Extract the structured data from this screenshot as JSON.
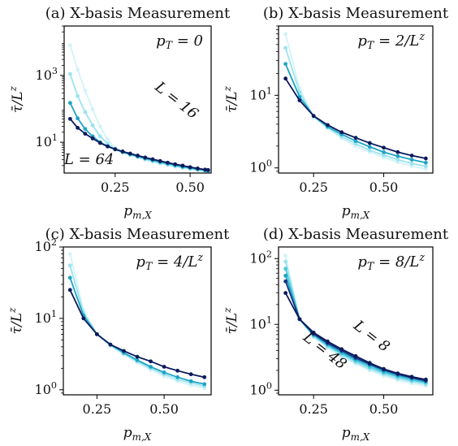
{
  "colors": {
    "L8": "#0b1a5c",
    "L16": "#1a2f82",
    "L24": "#1ea4c4",
    "L32": "#4cc9dc",
    "L48": "#9be3ef",
    "L64": "#d3f3f8",
    "annotation_dark": "#1a1a6e",
    "annotation_light": "#7fd6e6"
  },
  "chart_data": [
    {
      "type": "line",
      "title": "(a) X-basis Measurement",
      "annotation": "p_T = 0",
      "xlabel": "p_{m,X}",
      "ylabel": "τ̄/L^z",
      "yscale": "log",
      "xlim": [
        0.08,
        0.57
      ],
      "ylim": [
        1.2,
        30000
      ],
      "xticks": [
        0.25,
        0.5
      ],
      "xticklabels": [
        "0.25",
        "0.50"
      ],
      "yticks": [
        10,
        1000
      ],
      "yticklabels": [
        "10^1",
        "10^3"
      ],
      "curve_labels": [
        {
          "text": "L = 16",
          "x": 0.38,
          "y": 400,
          "angle": 38,
          "color": "annotation_light"
        },
        {
          "text": "L = 64",
          "x": 0.08,
          "y": 2.2,
          "angle": 0,
          "color": "annotation_dark"
        }
      ],
      "series": [
        {
          "color": "L8",
          "x": [
            0.1,
            0.125,
            0.15,
            0.175,
            0.2,
            0.225,
            0.25,
            0.275,
            0.3,
            0.325,
            0.35,
            0.375,
            0.4,
            0.425,
            0.45,
            0.475,
            0.5,
            0.525,
            0.55,
            0.56
          ],
          "y": [
            50,
            27,
            18,
            13,
            9.5,
            7.5,
            6.2,
            5.3,
            4.6,
            4,
            3.5,
            3.1,
            2.75,
            2.45,
            2.2,
            2,
            1.8,
            1.65,
            1.52,
            1.48
          ]
        },
        {
          "color": "L24",
          "x": [
            0.1,
            0.125,
            0.15,
            0.175,
            0.2,
            0.225,
            0.25,
            0.275,
            0.3,
            0.325,
            0.35,
            0.375,
            0.4,
            0.425,
            0.45,
            0.475,
            0.5,
            0.525,
            0.55,
            0.56
          ],
          "y": [
            150,
            52,
            25,
            15,
            10,
            7.6,
            6.1,
            5.1,
            4.4,
            3.8,
            3.3,
            2.9,
            2.55,
            2.3,
            2.05,
            1.85,
            1.7,
            1.56,
            1.45,
            1.42
          ]
        },
        {
          "color": "L48",
          "x": [
            0.1,
            0.125,
            0.15,
            0.175,
            0.2,
            0.225,
            0.25,
            0.275,
            0.3,
            0.325,
            0.35,
            0.375,
            0.4,
            0.425,
            0.45,
            0.475,
            0.5,
            0.525,
            0.55,
            0.56
          ],
          "y": [
            1100,
            240,
            80,
            32,
            15,
            9,
            6.3,
            5,
            4.2,
            3.6,
            3.1,
            2.7,
            2.4,
            2.15,
            1.95,
            1.78,
            1.62,
            1.5,
            1.4,
            1.38
          ]
        },
        {
          "color": "L64",
          "x": [
            0.1,
            0.125,
            0.15,
            0.175,
            0.2,
            0.225,
            0.25,
            0.275,
            0.3,
            0.325,
            0.35,
            0.375,
            0.4,
            0.425,
            0.45,
            0.475,
            0.5,
            0.525,
            0.55,
            0.56
          ],
          "y": [
            8000,
            1500,
            350,
            95,
            30,
            12,
            6.8,
            5,
            4.1,
            3.5,
            3,
            2.6,
            2.3,
            2.05,
            1.85,
            1.7,
            1.55,
            1.45,
            1.36,
            1.33
          ]
        }
      ]
    },
    {
      "type": "line",
      "title": "(b) X-basis Measurement",
      "annotation": "p_T = 2/L^z",
      "xlabel": "p_{m,X}",
      "ylabel": "τ̄/L^z",
      "yscale": "log",
      "xlim": [
        0.125,
        0.675
      ],
      "ylim": [
        0.85,
        90
      ],
      "xticks": [
        0.25,
        0.5
      ],
      "xticklabels": [
        "0.25",
        "0.50"
      ],
      "yticks": [
        1,
        10
      ],
      "yticklabels": [
        "10^0",
        "10^1"
      ],
      "curve_labels": [],
      "series": [
        {
          "color": "L8",
          "x": [
            0.15,
            0.2,
            0.25,
            0.3,
            0.35,
            0.4,
            0.45,
            0.5,
            0.55,
            0.6,
            0.65
          ],
          "y": [
            17,
            8.5,
            5.2,
            3.9,
            3.1,
            2.6,
            2.2,
            1.9,
            1.65,
            1.48,
            1.35
          ]
        },
        {
          "color": "L24",
          "x": [
            0.15,
            0.2,
            0.25,
            0.3,
            0.35,
            0.4,
            0.45,
            0.5,
            0.55,
            0.6,
            0.65
          ],
          "y": [
            27,
            9.5,
            5.2,
            3.7,
            2.9,
            2.35,
            1.95,
            1.65,
            1.45,
            1.3,
            1.18
          ]
        },
        {
          "color": "L48",
          "x": [
            0.15,
            0.2,
            0.25,
            0.3,
            0.35,
            0.4,
            0.45,
            0.5,
            0.55,
            0.6,
            0.65
          ],
          "y": [
            45,
            11,
            5.1,
            3.6,
            2.7,
            2.15,
            1.75,
            1.5,
            1.3,
            1.15,
            1.05
          ]
        },
        {
          "color": "L64",
          "x": [
            0.15,
            0.2,
            0.25,
            0.3,
            0.35,
            0.4,
            0.45,
            0.5,
            0.55,
            0.6,
            0.65
          ],
          "y": [
            70,
            12.5,
            5,
            3.5,
            2.55,
            2,
            1.65,
            1.4,
            1.2,
            1.06,
            0.97
          ]
        }
      ]
    },
    {
      "type": "line",
      "title": "(c) X-basis Measurement",
      "annotation": "p_T = 4/L^z",
      "xlabel": "p_{m,X}",
      "ylabel": "τ̄/L^z",
      "yscale": "log",
      "xlim": [
        0.125,
        0.675
      ],
      "ylim": [
        0.85,
        100
      ],
      "xticks": [
        0.25,
        0.5
      ],
      "xticklabels": [
        "0.25",
        "0.50"
      ],
      "yticks": [
        1,
        10,
        100
      ],
      "yticklabels": [
        "10^0",
        "10^1",
        "10^2"
      ],
      "curve_labels": [],
      "series": [
        {
          "color": "L8",
          "x": [
            0.15,
            0.2,
            0.25,
            0.3,
            0.35,
            0.4,
            0.45,
            0.5,
            0.55,
            0.6,
            0.65
          ],
          "y": [
            25,
            10,
            6,
            4.3,
            3.5,
            2.9,
            2.5,
            2.1,
            1.85,
            1.65,
            1.5
          ]
        },
        {
          "color": "L24",
          "x": [
            0.15,
            0.2,
            0.25,
            0.3,
            0.35,
            0.4,
            0.45,
            0.5,
            0.55,
            0.6,
            0.65
          ],
          "y": [
            37,
            11,
            6,
            4.3,
            3.3,
            2.6,
            2.1,
            1.75,
            1.5,
            1.32,
            1.2
          ]
        },
        {
          "color": "L48",
          "x": [
            0.15,
            0.2,
            0.25,
            0.3,
            0.35,
            0.4,
            0.45,
            0.5,
            0.55,
            0.6,
            0.65
          ],
          "y": [
            55,
            12,
            6,
            4.2,
            3.2,
            2.5,
            2,
            1.65,
            1.4,
            1.25,
            1.12
          ]
        },
        {
          "color": "L64",
          "x": [
            0.15,
            0.2,
            0.25,
            0.3,
            0.35,
            0.4,
            0.45,
            0.5,
            0.55,
            0.6,
            0.65
          ],
          "y": [
            80,
            13,
            6,
            4.1,
            3.1,
            2.4,
            1.9,
            1.55,
            1.32,
            1.16,
            1.05
          ]
        }
      ]
    },
    {
      "type": "line",
      "title": "(d) X-basis Measurement",
      "annotation": "p_T = 8/L^z",
      "xlabel": "p_{m,X}",
      "ylabel": "τ̄/L^z",
      "yscale": "log",
      "xlim": [
        0.125,
        0.675
      ],
      "ylim": [
        0.85,
        150
      ],
      "xticks": [
        0.25,
        0.5
      ],
      "xticklabels": [
        "0.25",
        "0.50"
      ],
      "yticks": [
        1,
        10,
        100
      ],
      "yticklabels": [
        "10^0",
        "10^1",
        "10^2"
      ],
      "curve_labels": [
        {
          "text": "L = 8",
          "x": 0.39,
          "y": 9,
          "angle": 38,
          "color": "annotation_dark"
        },
        {
          "text": "L = 48",
          "x": 0.21,
          "y": 6,
          "angle": 38,
          "color": "annotation_light"
        }
      ],
      "series": [
        {
          "color": "L8",
          "x": [
            0.15,
            0.2,
            0.25,
            0.3,
            0.35,
            0.4,
            0.45,
            0.5,
            0.55,
            0.6,
            0.65
          ],
          "y": [
            30,
            12,
            7.5,
            5.5,
            4.2,
            3.3,
            2.6,
            2.1,
            1.8,
            1.6,
            1.45
          ]
        },
        {
          "color": "L16",
          "x": [
            0.15,
            0.2,
            0.25,
            0.3,
            0.35,
            0.4,
            0.45,
            0.5,
            0.55,
            0.6,
            0.65
          ],
          "y": [
            45,
            12,
            7.2,
            5.2,
            4,
            3.1,
            2.5,
            2.05,
            1.75,
            1.55,
            1.4
          ]
        },
        {
          "color": "L24",
          "x": [
            0.15,
            0.2,
            0.25,
            0.3,
            0.35,
            0.4,
            0.45,
            0.5,
            0.55,
            0.6,
            0.65
          ],
          "y": [
            55,
            12,
            7,
            5,
            3.8,
            2.95,
            2.4,
            1.95,
            1.68,
            1.5,
            1.35
          ]
        },
        {
          "color": "L32",
          "x": [
            0.15,
            0.2,
            0.25,
            0.3,
            0.35,
            0.4,
            0.45,
            0.5,
            0.55,
            0.6,
            0.65
          ],
          "y": [
            70,
            12,
            6.8,
            4.8,
            3.6,
            2.8,
            2.25,
            1.85,
            1.6,
            1.42,
            1.3
          ]
        },
        {
          "color": "L48",
          "x": [
            0.15,
            0.2,
            0.25,
            0.3,
            0.35,
            0.4,
            0.45,
            0.5,
            0.55,
            0.6,
            0.65
          ],
          "y": [
            90,
            12,
            6.6,
            4.6,
            3.4,
            2.65,
            2.1,
            1.75,
            1.5,
            1.35,
            1.23
          ]
        },
        {
          "color": "L64",
          "x": [
            0.15,
            0.2,
            0.25,
            0.3,
            0.35,
            0.4,
            0.45,
            0.5,
            0.55,
            0.6,
            0.65
          ],
          "y": [
            110,
            12,
            6.4,
            4.4,
            3.2,
            2.5,
            2,
            1.65,
            1.42,
            1.27,
            1.16
          ]
        }
      ]
    }
  ]
}
